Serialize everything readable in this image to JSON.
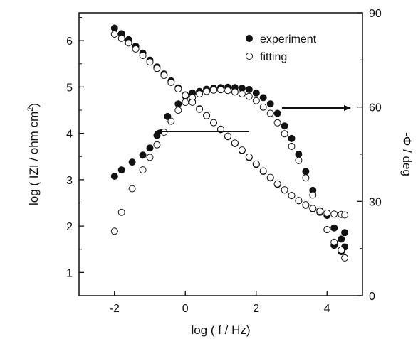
{
  "chart_data": {
    "type": "scatter",
    "title": "",
    "xlabel": "log ( f / Hz)",
    "ylabel_left": "log ( IZI / ohm cm",
    "ylabel_left_sup": "2",
    "ylabel_left_end": ")",
    "ylabel_right": "-Φ / deg",
    "xlim": [
      -3,
      5
    ],
    "ylim_left": [
      0.5,
      6.6
    ],
    "ylim_right": [
      0,
      90
    ],
    "xticks": [
      -2,
      0,
      2,
      4
    ],
    "yticks_left": [
      1,
      2,
      3,
      4,
      5,
      6
    ],
    "yticks_right": [
      0,
      30,
      60,
      90
    ],
    "grid": false,
    "legend_position": "top-right",
    "annotations": [
      {
        "type": "arrow",
        "direction": "left",
        "target_axis": "left"
      },
      {
        "type": "arrow",
        "direction": "right",
        "target_axis": "right"
      }
    ],
    "series": [
      {
        "name": "experiment",
        "marker": "filled-circle",
        "axis": "left",
        "x": [
          -2,
          -1.8,
          -1.6,
          -1.4,
          -1.2,
          -1,
          -0.8,
          -0.6,
          -0.4,
          -0.2,
          0,
          0.2,
          0.4,
          0.6,
          0.8,
          1,
          1.2,
          1.4,
          1.6,
          1.8,
          2,
          2.2,
          2.4,
          2.6,
          2.8,
          3,
          3.2,
          3.4,
          3.6,
          3.8,
          4,
          4.2,
          4.4,
          4.5
        ],
        "y": [
          6.27,
          6.15,
          6.02,
          5.88,
          5.73,
          5.58,
          5.43,
          5.28,
          5.13,
          4.98,
          4.83,
          4.68,
          4.53,
          4.38,
          4.23,
          4.08,
          3.93,
          3.78,
          3.63,
          3.48,
          3.33,
          3.18,
          3.04,
          2.9,
          2.78,
          2.66,
          2.55,
          2.45,
          2.37,
          2.3,
          2.23,
          1.96,
          1.72,
          1.86
        ]
      },
      {
        "name": "fitting",
        "marker": "open-circle",
        "axis": "left",
        "x": [
          -2,
          -1.8,
          -1.6,
          -1.4,
          -1.2,
          -1,
          -0.8,
          -0.6,
          -0.4,
          -0.2,
          0,
          0.2,
          0.4,
          0.6,
          0.8,
          1,
          1.2,
          1.4,
          1.6,
          1.8,
          2,
          2.2,
          2.4,
          2.6,
          2.8,
          3,
          3.2,
          3.4,
          3.6,
          3.8,
          4,
          4.2,
          4.4,
          4.5
        ],
        "y": [
          6.14,
          6.05,
          5.95,
          5.82,
          5.68,
          5.54,
          5.4,
          5.25,
          5.1,
          4.96,
          4.82,
          4.67,
          4.52,
          4.38,
          4.23,
          4.09,
          3.94,
          3.79,
          3.64,
          3.49,
          3.34,
          3.19,
          3.05,
          2.91,
          2.78,
          2.66,
          2.55,
          2.46,
          2.38,
          2.32,
          2.28,
          2.26,
          2.25,
          2.24
        ]
      },
      {
        "name": "experiment",
        "marker": "filled-circle",
        "axis": "right",
        "x": [
          -2,
          -1.8,
          -1.5,
          -1.2,
          -1,
          -0.8,
          -0.5,
          -0.2,
          0,
          0.2,
          0.4,
          0.6,
          0.8,
          1,
          1.2,
          1.4,
          1.6,
          1.8,
          2,
          2.2,
          2.4,
          2.6,
          2.8,
          3,
          3.2,
          3.4,
          3.6,
          3.8,
          4,
          4.2,
          4.4,
          4.5
        ],
        "y": [
          38,
          40,
          42.5,
          44.7,
          47,
          51,
          57,
          61,
          63.5,
          64.5,
          65,
          65.7,
          66,
          66.2,
          66.3,
          66.2,
          66,
          65.6,
          64.5,
          63,
          61,
          58,
          54,
          50,
          45,
          39.5,
          33.5,
          27,
          21,
          16,
          14,
          15.5
        ]
      },
      {
        "name": "fitting",
        "marker": "open-circle",
        "axis": "right",
        "x": [
          -2,
          -1.8,
          -1.5,
          -1.2,
          -1,
          -0.8,
          -0.6,
          -0.4,
          -0.2,
          0,
          0.2,
          0.4,
          0.6,
          0.8,
          1,
          1.2,
          1.4,
          1.6,
          1.8,
          2,
          2.2,
          2.4,
          2.6,
          2.8,
          3,
          3.2,
          3.4,
          3.6,
          3.8,
          4,
          4.2,
          4.4,
          4.5
        ],
        "y": [
          20.5,
          26.5,
          34,
          40,
          44,
          48,
          52,
          55.5,
          59,
          61.5,
          63,
          64.2,
          65,
          65.4,
          65.5,
          65.3,
          64.8,
          64.2,
          63.4,
          62,
          60,
          58,
          55,
          51.5,
          47.5,
          43,
          37.5,
          32,
          26.5,
          21,
          17,
          14.5,
          12
        ]
      }
    ]
  }
}
